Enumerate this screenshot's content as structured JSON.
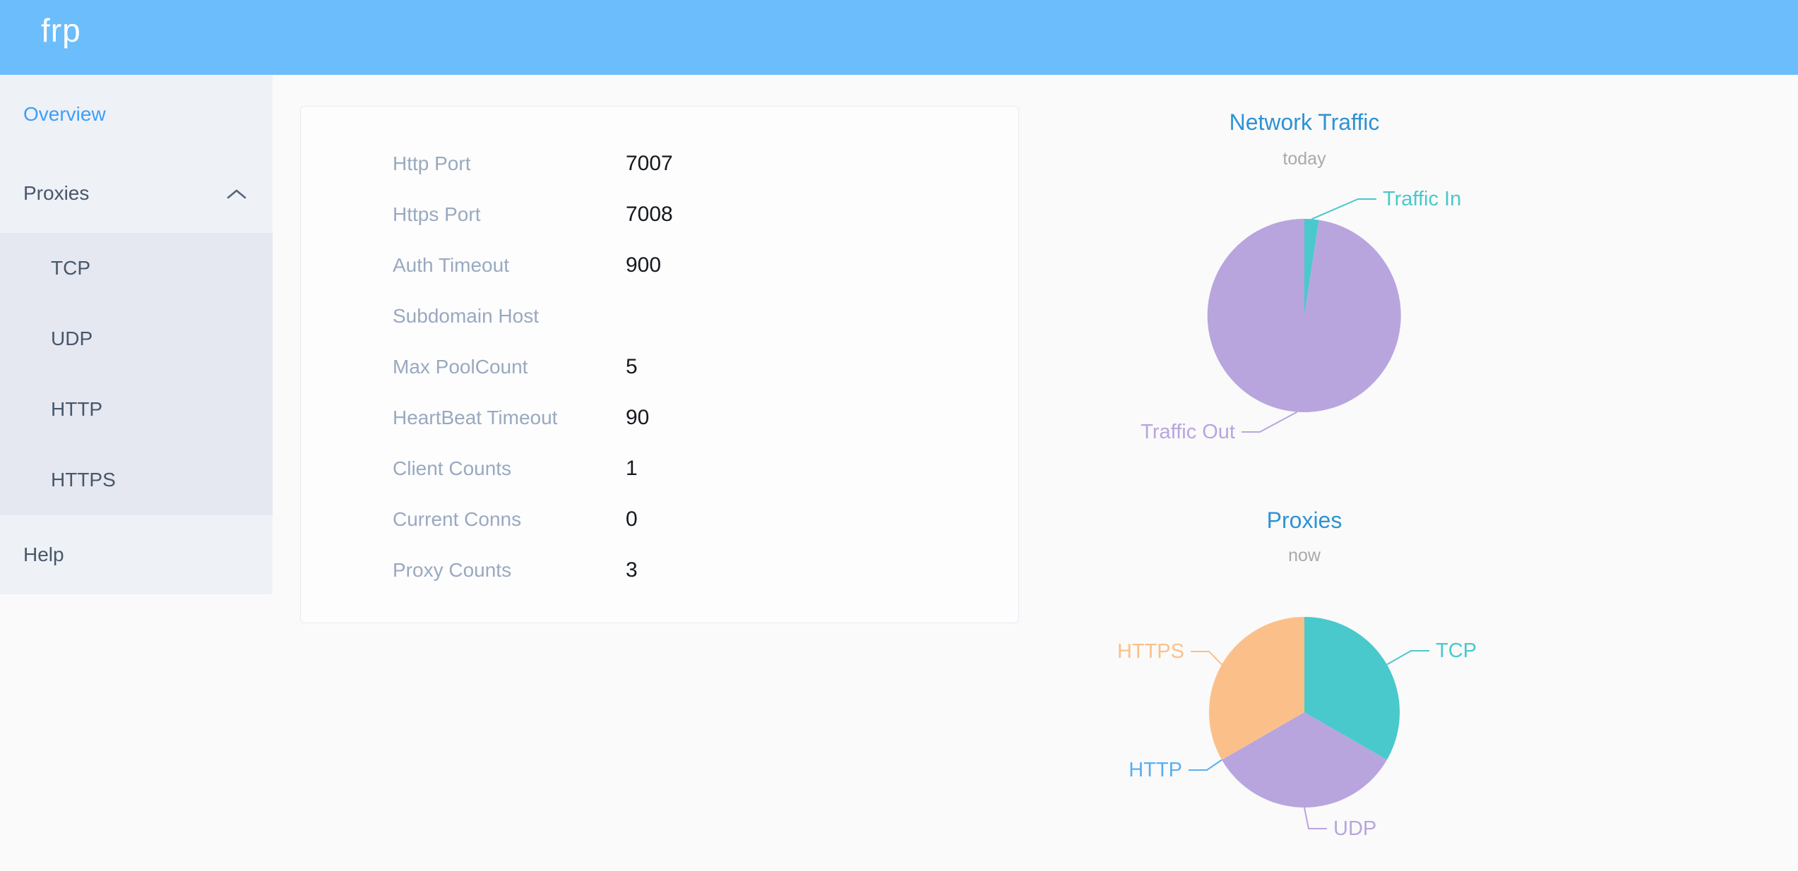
{
  "header": {
    "logo": "frp",
    "bg_color": "#6cbdfb"
  },
  "sidebar": {
    "items": [
      {
        "label": "Overview",
        "active": true
      },
      {
        "label": "Proxies",
        "expanded": true,
        "children": [
          "TCP",
          "UDP",
          "HTTP",
          "HTTPS"
        ]
      },
      {
        "label": "Help",
        "active": false
      }
    ]
  },
  "server_config": {
    "rows": [
      {
        "label": "Http Port",
        "value": "7007"
      },
      {
        "label": "Https Port",
        "value": "7008"
      },
      {
        "label": "Auth Timeout",
        "value": "900"
      },
      {
        "label": "Subdomain Host",
        "value": ""
      },
      {
        "label": "Max PoolCount",
        "value": "5"
      },
      {
        "label": "HeartBeat Timeout",
        "value": "90"
      },
      {
        "label": "Client Counts",
        "value": "1"
      },
      {
        "label": "Current Conns",
        "value": "0"
      },
      {
        "label": "Proxy Counts",
        "value": "3"
      }
    ]
  },
  "chart_data": [
    {
      "type": "pie",
      "title": "Network Traffic",
      "subtitle": "today",
      "legend_position": "callout-labels",
      "series": [
        {
          "name": "Traffic In",
          "value": 2.4,
          "unit": "percent",
          "color": "#49c9cc"
        },
        {
          "name": "Traffic Out",
          "value": 97.6,
          "unit": "percent",
          "color": "#b8a5de"
        }
      ]
    },
    {
      "type": "pie",
      "title": "Proxies",
      "subtitle": "now",
      "legend_position": "callout-labels",
      "series": [
        {
          "name": "TCP",
          "value": 1,
          "color": "#49c9cc"
        },
        {
          "name": "UDP",
          "value": 1,
          "color": "#b8a5de"
        },
        {
          "name": "HTTP",
          "value": 0,
          "color": "#5aaff0"
        },
        {
          "name": "HTTPS",
          "value": 1,
          "color": "#fbc08a"
        }
      ]
    }
  ]
}
